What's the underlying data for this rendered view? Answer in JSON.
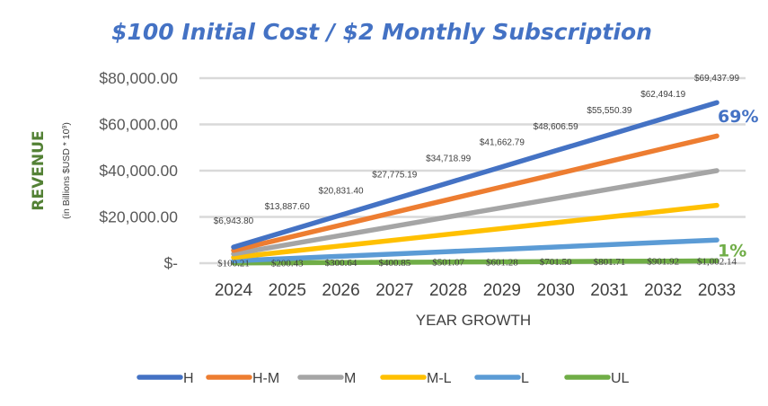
{
  "chart_data": {
    "type": "line",
    "title": "$100 Initial Cost / $2 Monthly Subscription",
    "xlabel": "YEAR GROWTH",
    "ylabel": "REVENUE",
    "ylabel_sub": "(in Billions $USD * 10^9)",
    "categories": [
      "2024",
      "2025",
      "2026",
      "2027",
      "2028",
      "2029",
      "2030",
      "2031",
      "2032",
      "2033"
    ],
    "ylim": [
      0,
      80000
    ],
    "yticks": [
      0,
      20000,
      40000,
      60000,
      80000
    ],
    "ytick_labels": [
      "$-",
      "$20,000.00",
      "$40,000.00",
      "$60,000.00",
      "$80,000.00"
    ],
    "grid": true,
    "legend_position": "bottom",
    "series": [
      {
        "name": "H",
        "color": "#4472C4",
        "values": [
          6943.8,
          13887.6,
          20831.4,
          27775.19,
          34718.99,
          41662.79,
          48606.59,
          55550.39,
          62494.19,
          69437.99
        ],
        "labels": [
          "$6,943.80",
          "$13,887.60",
          "$20,831.40",
          "$27,775.19",
          "$34,718.99",
          "$41,662.79",
          "$48,606.59",
          "$55,550.39",
          "$62,494.19",
          "$69,437.99"
        ]
      },
      {
        "name": "H-M",
        "color": "#ED7D31",
        "values": [
          5500,
          11000,
          16500,
          22000,
          27500,
          33000,
          38500,
          44000,
          49500,
          55000
        ]
      },
      {
        "name": "M",
        "color": "#A5A5A5",
        "values": [
          4000,
          8000,
          12000,
          16000,
          20000,
          24000,
          28000,
          32000,
          36000,
          40000
        ]
      },
      {
        "name": "M-L",
        "color": "#FFC000",
        "values": [
          2500,
          5000,
          7500,
          10000,
          12500,
          15000,
          17500,
          20000,
          22500,
          25000
        ]
      },
      {
        "name": "L",
        "color": "#5B9BD5",
        "values": [
          1000,
          2000,
          3000,
          4000,
          5000,
          6000,
          7000,
          8000,
          9000,
          10000
        ]
      },
      {
        "name": "UL",
        "color": "#70AD47",
        "values": [
          100.21,
          200.43,
          300.64,
          400.85,
          501.07,
          601.28,
          701.5,
          801.71,
          901.92,
          1002.14
        ],
        "labels": [
          "$100.21",
          "$200.43",
          "$300.64",
          "$400.85",
          "$501.07",
          "$601.28",
          "$701.50",
          "$801.71",
          "$901.92",
          "$1,002.14"
        ]
      }
    ],
    "annotations": [
      {
        "text": "69%",
        "series": "H",
        "color": "#4472C4"
      },
      {
        "text": "1%",
        "series": "UL",
        "color": "#70AD47"
      }
    ]
  }
}
